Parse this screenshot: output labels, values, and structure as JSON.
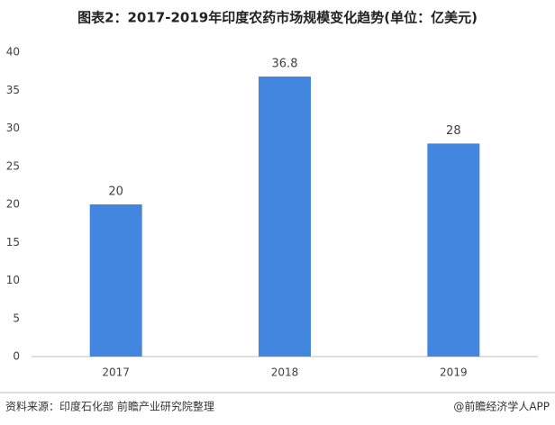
{
  "chart_data": {
    "type": "bar",
    "title": "图表2：2017-2019年印度农药市场规模变化趋势(单位：亿美元)",
    "categories": [
      "2017",
      "2018",
      "2019"
    ],
    "values": [
      20,
      36.8,
      28
    ],
    "color": "#4286e0",
    "ylim": [
      0,
      40
    ],
    "yticks": [
      0,
      5,
      10,
      15,
      20,
      25,
      30,
      35,
      40
    ],
    "grid": false,
    "source": "资料来源：印度石化部 前瞻产业研究院整理",
    "credit": "@前瞻经济学人APP"
  }
}
